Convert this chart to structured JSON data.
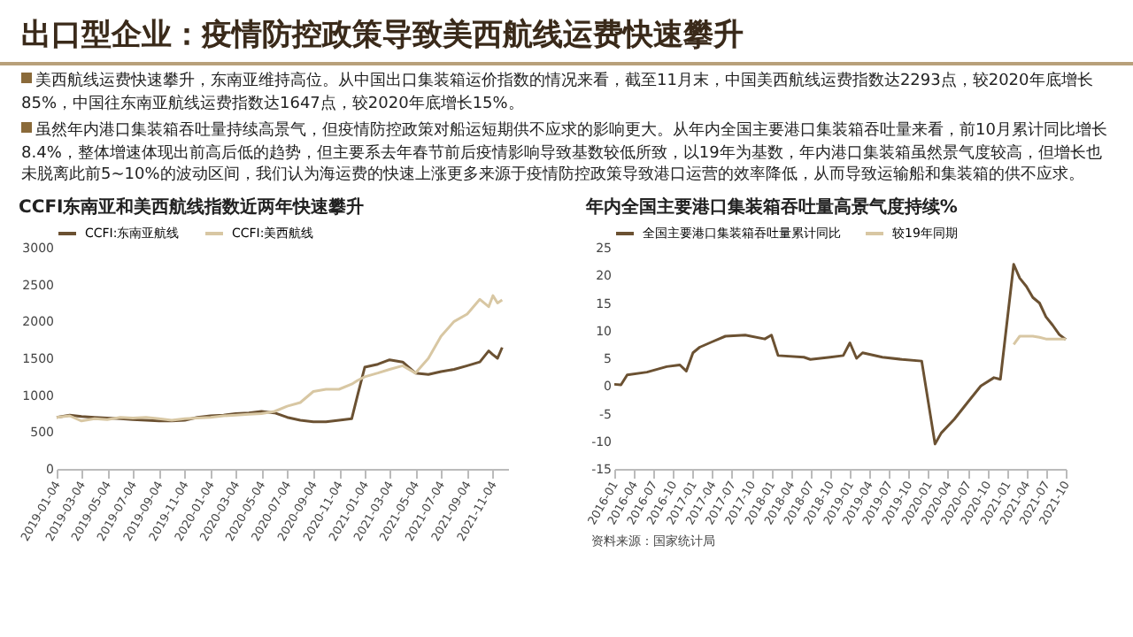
{
  "chart_data": [
    {
      "type": "line",
      "title": "CCFI东南亚和美西航线指数近两年快速攀升",
      "annotations": [
        "出口型企业：疫情防控政策导致美西航线运费快速攀升",
        "美西航线运费快速攀升，东南亚维持高位。从中国出口集装箱运价指数的情况来看，截至11月末，中国美西航线运费指数达2293点，较2020年底增长85%，中国往东南亚航线运费指数达1647点，较2020年底增长15%。",
        "虽然年内港口集装箱吞吐量持续高景气，但疫情防控政策对船运短期供不应求的影响更大。从年内全国主要港口集装箱吞吐量来看，前10月累计同比增长8.4%，整体增速体现出前高后低的趋势，但主要系去年春节前后疫情影响导致基数较低所致，以19年为基数，年内港口集装箱虽然景气度较高，但增长也未脱离此前5~10%的波动区间，我们认为海运费的快速上涨更多来源于疫情防控政策导致港口运营的效率降低，从而导致运输船和集装箱的供不应求。"
      ],
      "x": [
        "2019-01-04",
        "2019-02-04",
        "2019-03-04",
        "2019-04-04",
        "2019-05-04",
        "2019-06-04",
        "2019-07-04",
        "2019-08-04",
        "2019-09-04",
        "2019-10-04",
        "2019-11-04",
        "2019-12-04",
        "2020-01-04",
        "2020-02-04",
        "2020-03-04",
        "2020-04-04",
        "2020-05-04",
        "2020-06-04",
        "2020-07-04",
        "2020-08-04",
        "2020-09-04",
        "2020-10-04",
        "2020-11-04",
        "2020-12-04",
        "2020-12-18",
        "2021-01-04",
        "2021-02-04",
        "2021-03-04",
        "2021-04-04",
        "2021-05-04",
        "2021-06-04",
        "2021-07-04",
        "2021-08-04",
        "2021-09-04",
        "2021-10-04",
        "2021-10-25",
        "2021-11-04",
        "2021-11-15",
        "2021-11-26"
      ],
      "series": [
        {
          "name": "CCFI:东南亚航线",
          "color": "#6b5132",
          "values": [
            700,
            730,
            710,
            700,
            690,
            680,
            670,
            660,
            650,
            650,
            660,
            700,
            720,
            730,
            750,
            760,
            780,
            760,
            700,
            660,
            640,
            640,
            660,
            680,
            1000,
            1380,
            1420,
            1480,
            1450,
            1300,
            1280,
            1320,
            1350,
            1400,
            1450,
            1600,
            1550,
            1500,
            1647
          ]
        },
        {
          "name": "CCFI:美西航线",
          "color": "#d8c7a3",
          "values": [
            700,
            720,
            650,
            680,
            670,
            700,
            690,
            700,
            680,
            660,
            680,
            690,
            700,
            720,
            730,
            740,
            750,
            780,
            850,
            900,
            1050,
            1080,
            1080,
            1150,
            1200,
            1250,
            1300,
            1350,
            1400,
            1300,
            1500,
            1800,
            2000,
            2100,
            2300,
            2200,
            2350,
            2250,
            2293
          ]
        }
      ],
      "xlim": [
        "2019-01-04",
        "2021-12-10"
      ],
      "xticks": [
        "2019-01-04",
        "2019-03-04",
        "2019-05-04",
        "2019-07-04",
        "2019-09-04",
        "2019-11-04",
        "2020-01-04",
        "2020-03-04",
        "2020-05-04",
        "2020-07-04",
        "2020-09-04",
        "2020-11-04",
        "2021-01-04",
        "2021-03-04",
        "2021-05-04",
        "2021-07-04",
        "2021-09-04",
        "2021-11-04"
      ],
      "ylim": [
        0,
        3000
      ],
      "yticks": [
        0,
        500,
        1000,
        1500,
        2000,
        2500,
        3000
      ],
      "grid": false,
      "legend": "top"
    },
    {
      "type": "line",
      "title": "年内全国主要港口集装箱吞吐量高景气度持续%",
      "annotations": [
        "资料来源：国家统计局"
      ],
      "x": [
        "2016-01",
        "2016-02",
        "2016-03",
        "2016-06",
        "2016-09",
        "2016-11",
        "2016-12",
        "2017-01",
        "2017-02",
        "2017-04",
        "2017-06",
        "2017-09",
        "2017-12",
        "2018-01",
        "2018-02",
        "2018-06",
        "2018-07",
        "2018-10",
        "2018-12",
        "2019-01",
        "2019-02",
        "2019-03",
        "2019-06",
        "2019-09",
        "2019-12",
        "2020-02",
        "2020-03",
        "2020-05",
        "2020-07",
        "2020-09",
        "2020-11",
        "2020-12",
        "2021-02",
        "2021-03",
        "2021-04",
        "2021-05",
        "2021-06",
        "2021-07",
        "2021-08",
        "2021-09",
        "2021-10"
      ],
      "series": [
        {
          "name": "全国主要港口集装箱吞吐量累计同比",
          "color": "#6b5132",
          "values": [
            0.3,
            0.2,
            2,
            2.5,
            3.5,
            3.8,
            2.7,
            6,
            7,
            8,
            9,
            9.2,
            8.5,
            9.2,
            5.5,
            5.2,
            4.8,
            5.2,
            5.5,
            7.8,
            5,
            6,
            5.2,
            4.8,
            4.5,
            -10.5,
            -8.5,
            -6,
            -3,
            0,
            1.5,
            1.2,
            22,
            19.5,
            18,
            16,
            15,
            12.5,
            11,
            9.3,
            8.4
          ]
        },
        {
          "name": "较19年同期",
          "color": "#d8c7a3",
          "x": [
            "2021-02",
            "2021-03",
            "2021-04",
            "2021-05",
            "2021-06",
            "2021-07",
            "2021-08",
            "2021-09",
            "2021-10"
          ],
          "values": [
            7.5,
            9,
            9,
            9,
            8.8,
            8.5,
            8.5,
            8.5,
            8.5
          ]
        }
      ],
      "xlim": [
        "2016-01",
        "2021-10"
      ],
      "xticks": [
        "2016-01",
        "2016-04",
        "2016-07",
        "2016-10",
        "2017-01",
        "2017-04",
        "2017-07",
        "2017-10",
        "2018-01",
        "2018-04",
        "2018-07",
        "2018-10",
        "2019-01",
        "2019-04",
        "2019-07",
        "2019-10",
        "2020-01",
        "2020-04",
        "2020-07",
        "2020-10",
        "2021-01",
        "2021-04",
        "2021-07",
        "2021-10"
      ],
      "ylim": [
        -15,
        25
      ],
      "yticks": [
        -15,
        -10,
        -5,
        0,
        5,
        10,
        15,
        20,
        25
      ],
      "grid": false,
      "legend": "top"
    }
  ]
}
